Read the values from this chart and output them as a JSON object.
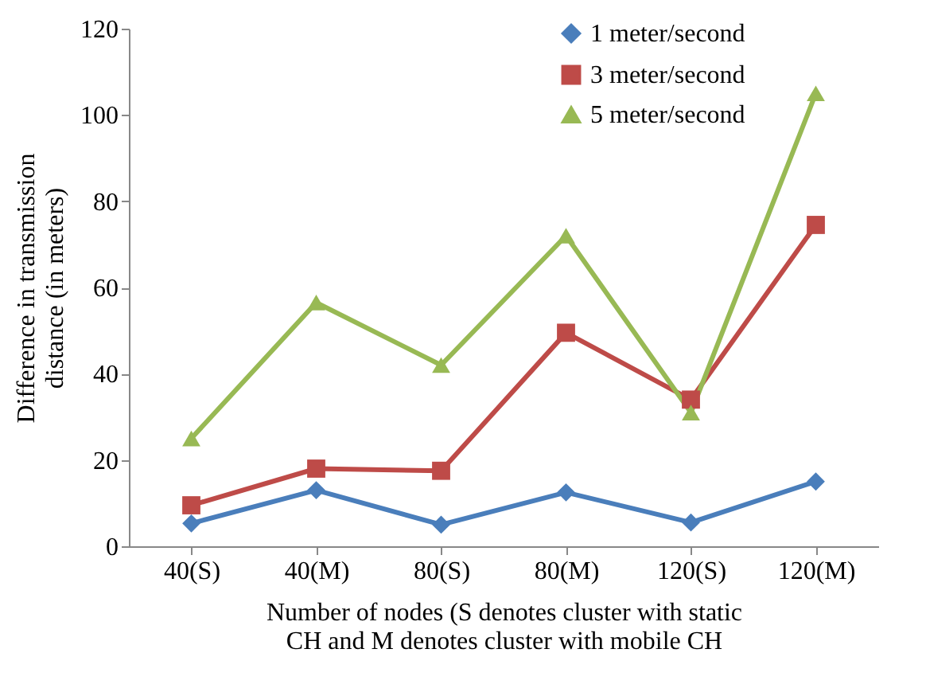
{
  "chart_data": {
    "type": "line",
    "xlabel": "Number of nodes (S denotes cluster with static CH and M denotes cluster with mobile CH",
    "ylabel": "Difference in transmission distance (in meters)",
    "categories": [
      "40(S)",
      "40(M)",
      "80(S)",
      "80(M)",
      "120(S)",
      "120(M)"
    ],
    "series": [
      {
        "name": "1 meter/second",
        "color": "#4a7ebb",
        "marker": "diamond",
        "values": [
          5.3,
          13,
          5,
          12.5,
          5.5,
          15
        ]
      },
      {
        "name": "3 meter/second",
        "color": "#be4b48",
        "marker": "square",
        "values": [
          9.5,
          18,
          17.5,
          49.5,
          34,
          74.5
        ]
      },
      {
        "name": "5 meter/second",
        "color": "#98b954",
        "marker": "triangle",
        "values": [
          25,
          56.5,
          42,
          72,
          31,
          105
        ]
      }
    ],
    "ylim": [
      0,
      120
    ],
    "yticks": [
      0,
      20,
      40,
      60,
      80,
      100,
      120
    ],
    "grid": false,
    "legend": "top right",
    "line_style": "solid"
  }
}
